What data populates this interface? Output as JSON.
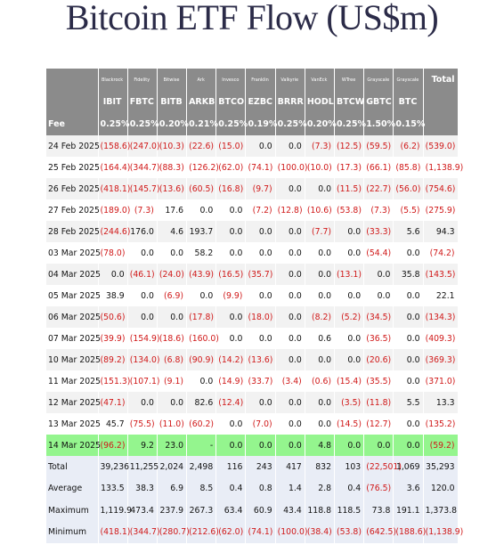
{
  "title": "Bitcoin ETF Flow (US$m)",
  "header": {
    "firms": [
      "Blackrock",
      "Fidelity",
      "Bitwise",
      "Ark",
      "Invesco",
      "Franklin",
      "Valkyrie",
      "VanEck",
      "WTree",
      "Grayscale",
      "Grayscale"
    ],
    "tickers": [
      "IBIT",
      "FBTC",
      "BITB",
      "ARKB",
      "BTCO",
      "EZBC",
      "BRRR",
      "HODL",
      "BTCW",
      "GBTC",
      "BTC"
    ],
    "total": "Total"
  },
  "fee": {
    "label": "Fee",
    "values": [
      "0.25%",
      "0.25%",
      "0.20%",
      "0.21%",
      "0.25%",
      "0.19%",
      "0.25%",
      "0.20%",
      "0.25%",
      "1.50%",
      "0.15%"
    ]
  },
  "rows": [
    {
      "date": "24 Feb 2025",
      "cells": [
        "(158.6)",
        "(247.0)",
        "(10.3)",
        "(22.6)",
        "(15.0)",
        "0.0",
        "0.0",
        "(7.3)",
        "(12.5)",
        "(59.5)",
        "(6.2)",
        "(539.0)"
      ]
    },
    {
      "date": "25 Feb 2025",
      "cells": [
        "(164.4)",
        "(344.7)",
        "(88.3)",
        "(126.2)",
        "(62.0)",
        "(74.1)",
        "(100.0)",
        "(10.0)",
        "(17.3)",
        "(66.1)",
        "(85.8)",
        "(1,138.9)"
      ]
    },
    {
      "date": "26 Feb 2025",
      "cells": [
        "(418.1)",
        "(145.7)",
        "(13.6)",
        "(60.5)",
        "(16.8)",
        "(9.7)",
        "0.0",
        "0.0",
        "(11.5)",
        "(22.7)",
        "(56.0)",
        "(754.6)"
      ]
    },
    {
      "date": "27 Feb 2025",
      "cells": [
        "(189.0)",
        "(7.3)",
        "17.6",
        "0.0",
        "0.0",
        "(7.2)",
        "(12.8)",
        "(10.6)",
        "(53.8)",
        "(7.3)",
        "(5.5)",
        "(275.9)"
      ]
    },
    {
      "date": "28 Feb 2025",
      "cells": [
        "(244.6)",
        "176.0",
        "4.6",
        "193.7",
        "0.0",
        "0.0",
        "0.0",
        "(7.7)",
        "0.0",
        "(33.3)",
        "5.6",
        "94.3"
      ]
    },
    {
      "date": "03 Mar 2025",
      "cells": [
        "(78.0)",
        "0.0",
        "0.0",
        "58.2",
        "0.0",
        "0.0",
        "0.0",
        "0.0",
        "0.0",
        "(54.4)",
        "0.0",
        "(74.2)"
      ]
    },
    {
      "date": "04 Mar 2025",
      "cells": [
        "0.0",
        "(46.1)",
        "(24.0)",
        "(43.9)",
        "(16.5)",
        "(35.7)",
        "0.0",
        "0.0",
        "(13.1)",
        "0.0",
        "35.8",
        "(143.5)"
      ]
    },
    {
      "date": "05 Mar 2025",
      "cells": [
        "38.9",
        "0.0",
        "(6.9)",
        "0.0",
        "(9.9)",
        "0.0",
        "0.0",
        "0.0",
        "0.0",
        "0.0",
        "0.0",
        "22.1"
      ]
    },
    {
      "date": "06 Mar 2025",
      "cells": [
        "(50.6)",
        "0.0",
        "0.0",
        "(17.8)",
        "0.0",
        "(18.0)",
        "0.0",
        "(8.2)",
        "(5.2)",
        "(34.5)",
        "0.0",
        "(134.3)"
      ]
    },
    {
      "date": "07 Mar 2025",
      "cells": [
        "(39.9)",
        "(154.9)",
        "(18.6)",
        "(160.0)",
        "0.0",
        "0.0",
        "0.0",
        "0.6",
        "0.0",
        "(36.5)",
        "0.0",
        "(409.3)"
      ]
    },
    {
      "date": "10 Mar 2025",
      "cells": [
        "(89.2)",
        "(134.0)",
        "(6.8)",
        "(90.9)",
        "(14.2)",
        "(13.6)",
        "0.0",
        "0.0",
        "0.0",
        "(20.6)",
        "0.0",
        "(369.3)"
      ]
    },
    {
      "date": "11 Mar 2025",
      "cells": [
        "(151.3)",
        "(107.1)",
        "(9.1)",
        "0.0",
        "(14.9)",
        "(33.7)",
        "(3.4)",
        "(0.6)",
        "(15.4)",
        "(35.5)",
        "0.0",
        "(371.0)"
      ]
    },
    {
      "date": "12 Mar 2025",
      "cells": [
        "(47.1)",
        "0.0",
        "0.0",
        "82.6",
        "(12.4)",
        "0.0",
        "0.0",
        "0.0",
        "(3.5)",
        "(11.8)",
        "5.5",
        "13.3"
      ]
    },
    {
      "date": "13 Mar 2025",
      "cells": [
        "45.7",
        "(75.5)",
        "(11.0)",
        "(60.2)",
        "0.0",
        "(7.0)",
        "0.0",
        "0.0",
        "(14.5)",
        "(12.7)",
        "0.0",
        "(135.2)"
      ]
    },
    {
      "date": "14 Mar 2025",
      "cells": [
        "(96.2)",
        "9.2",
        "23.0",
        "-",
        "0.0",
        "0.0",
        "0.0",
        "4.8",
        "0.0",
        "0.0",
        "0.0",
        "(59.2)"
      ]
    }
  ],
  "summary": [
    {
      "label": "Total",
      "cells": [
        "39,236",
        "11,255",
        "2,024",
        "2,498",
        "116",
        "243",
        "417",
        "832",
        "103",
        "(22,501)",
        "1,069",
        "35,293"
      ]
    },
    {
      "label": "Average",
      "cells": [
        "133.5",
        "38.3",
        "6.9",
        "8.5",
        "0.4",
        "0.8",
        "1.4",
        "2.8",
        "0.4",
        "(76.5)",
        "3.6",
        "120.0"
      ]
    },
    {
      "label": "Maximum",
      "cells": [
        "1,119.9",
        "473.4",
        "237.9",
        "267.3",
        "63.4",
        "60.9",
        "43.4",
        "118.8",
        "118.5",
        "73.8",
        "191.1",
        "1,373.8"
      ]
    },
    {
      "label": "Minimum",
      "cells": [
        "(418.1)",
        "(344.7)",
        "(280.7)",
        "(212.6)",
        "(62.0)",
        "(74.1)",
        "(100.0)",
        "(38.4)",
        "(53.8)",
        "(642.5)",
        "(188.6)",
        "(1,138.9)"
      ]
    }
  ]
}
